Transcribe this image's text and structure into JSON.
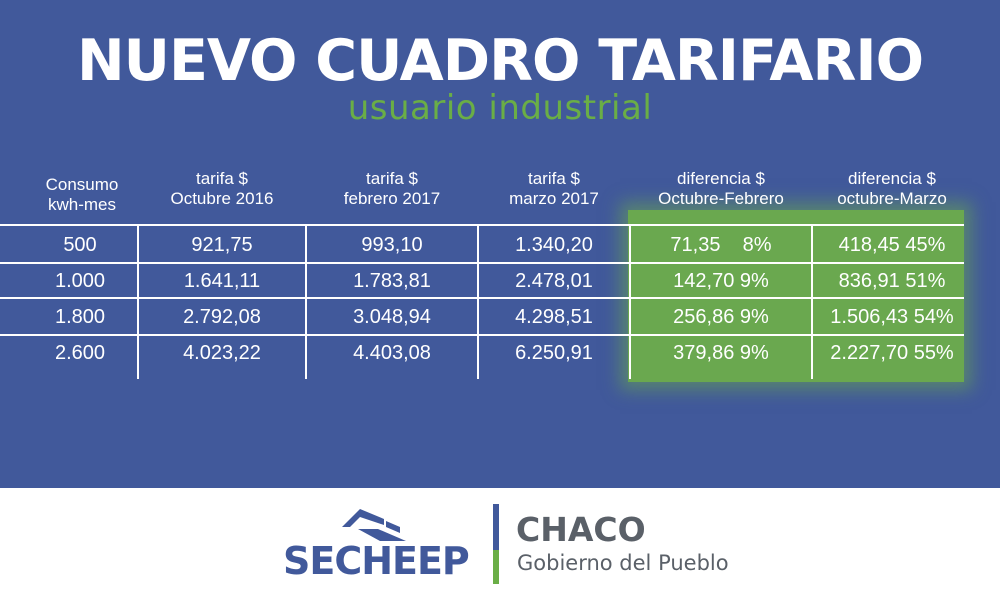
{
  "title": "NUEVO CUADRO TARIFARIO",
  "subtitle": "usuario industrial",
  "headers": [
    {
      "l1": "Consumo",
      "l2": "kwh-mes"
    },
    {
      "l1": "tarifa $",
      "l2": "Octubre 2016"
    },
    {
      "l1": "tarifa $",
      "l2": "febrero 2017"
    },
    {
      "l1": "tarifa $",
      "l2": "marzo 2017"
    },
    {
      "l1": "diferencia $",
      "l2": "Octubre-Febrero"
    },
    {
      "l1": "diferencia $",
      "l2": "octubre-Marzo"
    }
  ],
  "rows": [
    [
      "500",
      "921,75",
      "993,10",
      "1.340,20",
      "71,35    8%",
      "418,45 45%"
    ],
    [
      "1.000",
      "1.641,11",
      "1.783,81",
      "2.478,01",
      "142,70 9%",
      "836,91 51%"
    ],
    [
      "1.800",
      "2.792,08",
      "3.048,94",
      "4.298,51",
      "256,86 9%",
      "1.506,43 54%"
    ],
    [
      "2.600",
      "4.023,22",
      "4.403,08",
      "6.250,91",
      "379,86 9%",
      "2.227,70 55%"
    ]
  ],
  "logos": {
    "secheep": "SECHEEP",
    "chaco_title": "CHACO",
    "chaco_sub": "Gobierno del Pueblo"
  },
  "colors": {
    "banner": "#41599b",
    "accent_green": "#6aae46",
    "logo_gray": "#5a6068"
  }
}
